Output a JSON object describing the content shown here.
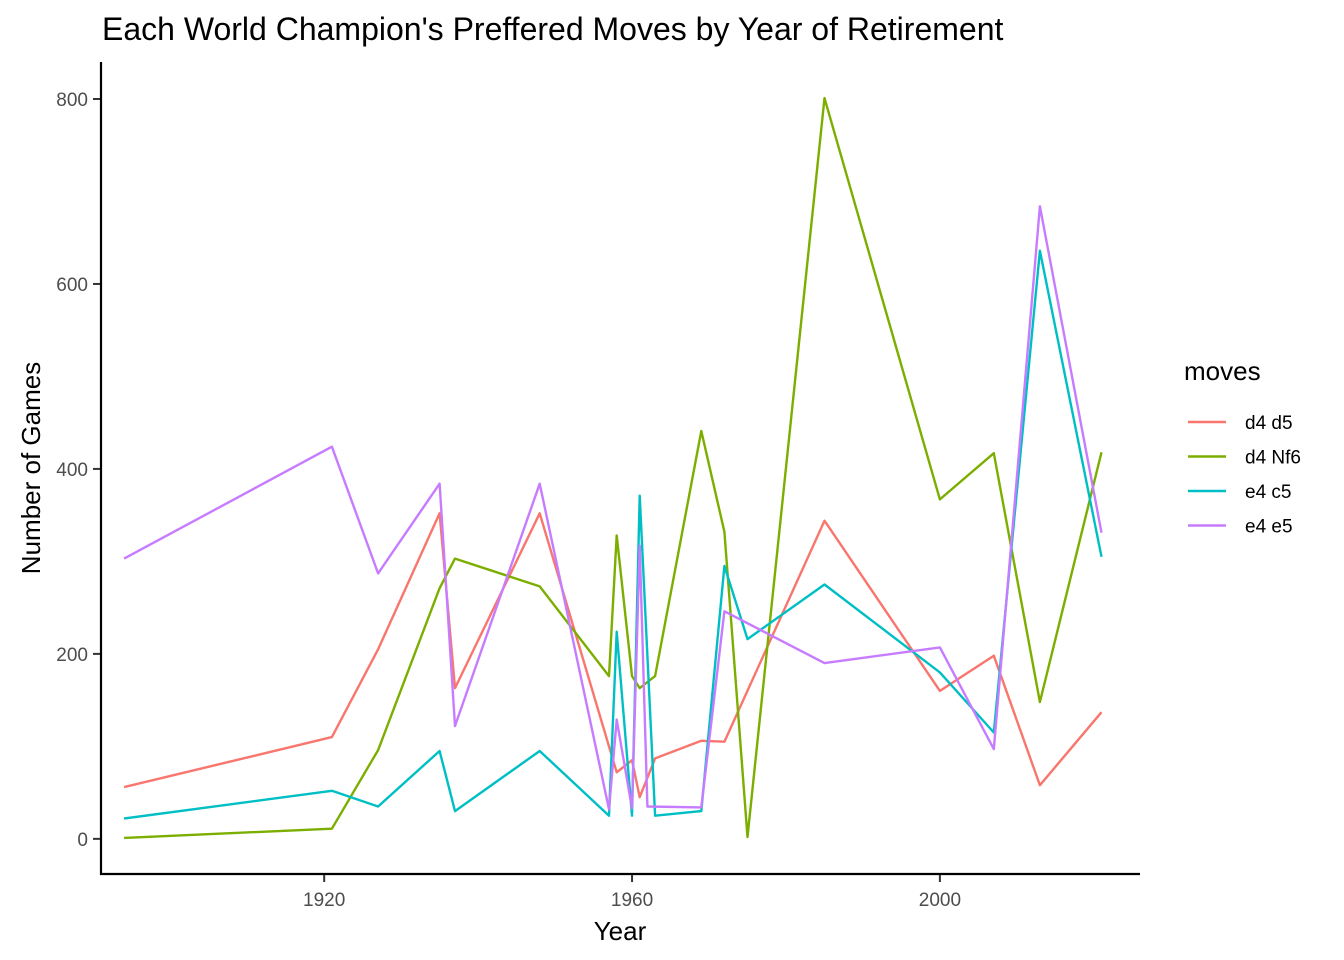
{
  "chart_data": {
    "type": "line",
    "title": "Each World Champion's Preffered Moves by Year of Retirement",
    "xlabel": "Year",
    "ylabel": "Number of Games",
    "xlim": [
      1891,
      2026
    ],
    "ylim": [
      -38,
      840
    ],
    "xticks": [
      1920,
      1960,
      2000
    ],
    "xtick_labels": [
      "1920",
      "1960",
      "2000"
    ],
    "yticks": [
      0,
      200,
      400,
      600,
      800
    ],
    "ytick_labels": [
      "0",
      "200",
      "400",
      "600",
      "800"
    ],
    "grid": false,
    "legend": {
      "title": "moves",
      "position": "right"
    },
    "series": [
      {
        "name": "d4 d5",
        "color": "#F8766D",
        "points": [
          [
            1894,
            56
          ],
          [
            1921,
            110
          ],
          [
            1927,
            205
          ],
          [
            1935,
            352
          ],
          [
            1937,
            163
          ],
          [
            1948,
            352
          ],
          [
            1958,
            72
          ],
          [
            1960,
            85
          ],
          [
            1961,
            45
          ],
          [
            1963,
            87
          ],
          [
            1969,
            106
          ],
          [
            1972,
            105
          ],
          [
            1985,
            344
          ],
          [
            2000,
            160
          ],
          [
            2007,
            198
          ],
          [
            2013,
            58
          ],
          [
            2021,
            137
          ]
        ]
      },
      {
        "name": "d4 Nf6",
        "color": "#7CAE00",
        "points": [
          [
            1894,
            1
          ],
          [
            1921,
            11
          ],
          [
            1927,
            96
          ],
          [
            1935,
            271
          ],
          [
            1937,
            303
          ],
          [
            1948,
            273
          ],
          [
            1957,
            176
          ],
          [
            1958,
            328
          ],
          [
            1960,
            176
          ],
          [
            1961,
            163
          ],
          [
            1963,
            176
          ],
          [
            1969,
            441
          ],
          [
            1972,
            332
          ],
          [
            1975,
            2
          ],
          [
            1985,
            801
          ],
          [
            2000,
            367
          ],
          [
            2007,
            417
          ],
          [
            2013,
            148
          ],
          [
            2021,
            418
          ]
        ]
      },
      {
        "name": "e4 c5",
        "color": "#00BFC4",
        "points": [
          [
            1894,
            22
          ],
          [
            1921,
            52
          ],
          [
            1927,
            35
          ],
          [
            1935,
            95
          ],
          [
            1937,
            30
          ],
          [
            1948,
            95
          ],
          [
            1957,
            25
          ],
          [
            1958,
            224
          ],
          [
            1960,
            25
          ],
          [
            1961,
            371
          ],
          [
            1963,
            25
          ],
          [
            1969,
            30
          ],
          [
            1972,
            295
          ],
          [
            1975,
            216
          ],
          [
            1985,
            275
          ],
          [
            2000,
            180
          ],
          [
            2007,
            115
          ],
          [
            2013,
            636
          ],
          [
            2021,
            305
          ]
        ]
      },
      {
        "name": "e4 e5",
        "color": "#C77CFF",
        "points": [
          [
            1894,
            303
          ],
          [
            1921,
            424
          ],
          [
            1927,
            287
          ],
          [
            1935,
            384
          ],
          [
            1937,
            122
          ],
          [
            1948,
            384
          ],
          [
            1957,
            32
          ],
          [
            1958,
            129
          ],
          [
            1960,
            33
          ],
          [
            1961,
            317
          ],
          [
            1962,
            35
          ],
          [
            1969,
            34
          ],
          [
            1972,
            246
          ],
          [
            1985,
            190
          ],
          [
            2000,
            207
          ],
          [
            2007,
            97
          ],
          [
            2013,
            684
          ],
          [
            2021,
            331
          ]
        ]
      }
    ]
  }
}
